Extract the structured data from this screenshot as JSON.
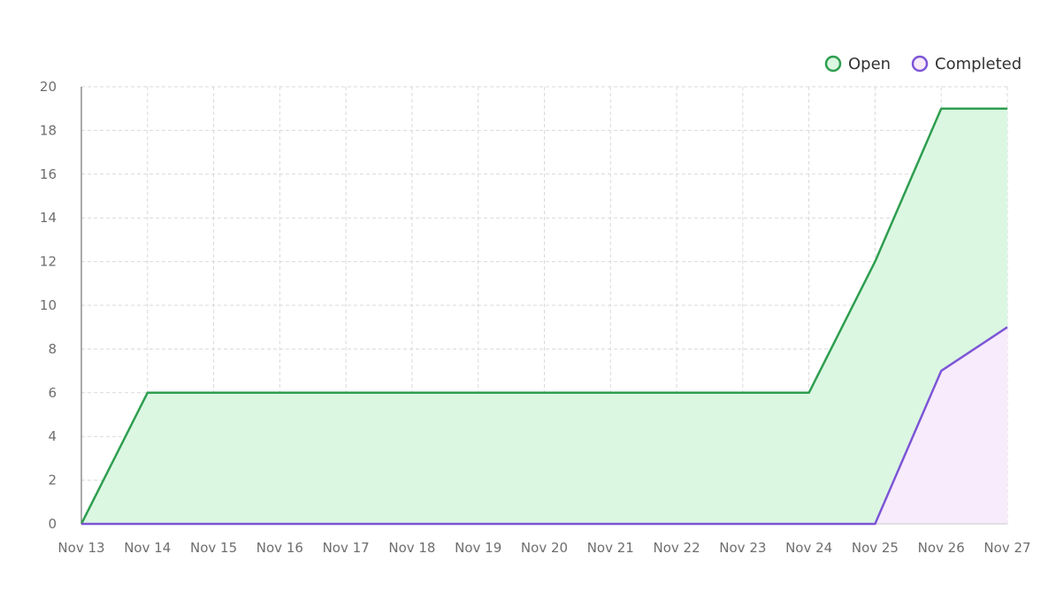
{
  "chart_data": {
    "type": "area",
    "title": "",
    "xlabel": "",
    "ylabel": "",
    "x": [
      "Nov 13",
      "Nov 14",
      "Nov 15",
      "Nov 16",
      "Nov 17",
      "Nov 18",
      "Nov 19",
      "Nov 20",
      "Nov 21",
      "Nov 22",
      "Nov 23",
      "Nov 24",
      "Nov 25",
      "Nov 26",
      "Nov 27"
    ],
    "ylim": [
      0,
      20
    ],
    "yticks": [
      0,
      2,
      4,
      6,
      8,
      10,
      12,
      14,
      16,
      18,
      20
    ],
    "grid": true,
    "legend_position": "top-right",
    "series": [
      {
        "name": "Open",
        "values": [
          0,
          6,
          6,
          6,
          6,
          6,
          6,
          6,
          6,
          6,
          6,
          6,
          12,
          19,
          19
        ],
        "line_color": "#2e9e4f",
        "fill_color": "#dbf7e2"
      },
      {
        "name": "Completed",
        "values": [
          0,
          0,
          0,
          0,
          0,
          0,
          0,
          0,
          0,
          0,
          0,
          0,
          0,
          7,
          9
        ],
        "line_color": "#7d55d6",
        "fill_color": "#f8ebfc"
      }
    ]
  }
}
